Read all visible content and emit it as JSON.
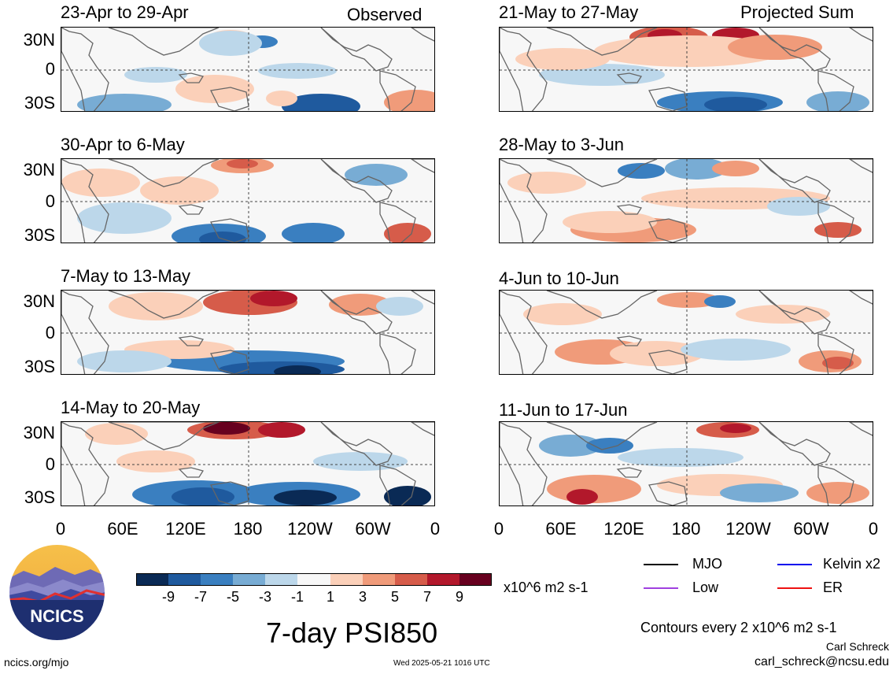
{
  "labels": {
    "observed": "Observed",
    "projected": "Projected Sum",
    "lat_ticks": [
      "30N",
      "0",
      "30S"
    ],
    "lon_ticks": [
      "0",
      "60E",
      "120E",
      "180",
      "120W",
      "60W",
      "0"
    ]
  },
  "left_panels": [
    "23-Apr to 29-Apr",
    "30-Apr to 6-May",
    "7-May to 13-May",
    "14-May to 20-May"
  ],
  "right_panels": [
    "21-May to 27-May",
    "28-May to 3-Jun",
    "4-Jun to 10-Jun",
    "11-Jun to 17-Jun"
  ],
  "colorbar": {
    "unit": "x10^6 m2 s-1",
    "labels": [
      "-9",
      "-7",
      "-5",
      "-3",
      "-1",
      "1",
      "3",
      "5",
      "7",
      "9"
    ],
    "colors": [
      "#0a2a55",
      "#1f5a9e",
      "#3a7fc0",
      "#78acd4",
      "#bcd7ea",
      "#f7f7f7",
      "#fbd0b9",
      "#f09b7a",
      "#d65c4a",
      "#b2182b",
      "#67001f"
    ]
  },
  "legend": {
    "mjo": "MJO",
    "kelvin": "Kelvin x2",
    "low": "Low",
    "er": "ER",
    "mjo_color": "#000000",
    "kelvin_color": "#0000ee",
    "low_color": "#a040e0",
    "er_color": "#ee1111"
  },
  "logo": {
    "text": "NCICS"
  },
  "footer": {
    "main_title": "7-day PSI850",
    "contours": "Contours every 2 x10^6 m2 s-1",
    "credit_name": "Carl Schreck",
    "credit_email": "carl_schreck@ncsu.edu",
    "url": "ncics.org/mjo",
    "timestamp": "Wed 2025-05-21 1016 UTC"
  },
  "chart_data": {
    "type": "heatmap",
    "title": "7-day PSI850",
    "units": "x10^6 m2 s-1",
    "x_ticks": [
      "0",
      "60E",
      "120E",
      "180",
      "120W",
      "60W",
      "0"
    ],
    "y_ticks": [
      "30N",
      "0",
      "30S"
    ],
    "levels": [
      -9,
      -7,
      -5,
      -3,
      -1,
      1,
      3,
      5,
      7,
      9
    ],
    "panels": [
      {
        "period": "23-Apr to 29-Apr",
        "type": "Observed"
      },
      {
        "period": "30-Apr to 6-May",
        "type": "Observed"
      },
      {
        "period": "7-May to 13-May",
        "type": "Observed"
      },
      {
        "period": "14-May to 20-May",
        "type": "Observed"
      },
      {
        "period": "21-May to 27-May",
        "type": "Projected Sum"
      },
      {
        "period": "28-May to 3-Jun",
        "type": "Projected Sum"
      },
      {
        "period": "4-Jun to 10-Jun",
        "type": "Projected Sum"
      },
      {
        "period": "11-Jun to 17-Jun",
        "type": "Projected Sum"
      }
    ]
  }
}
